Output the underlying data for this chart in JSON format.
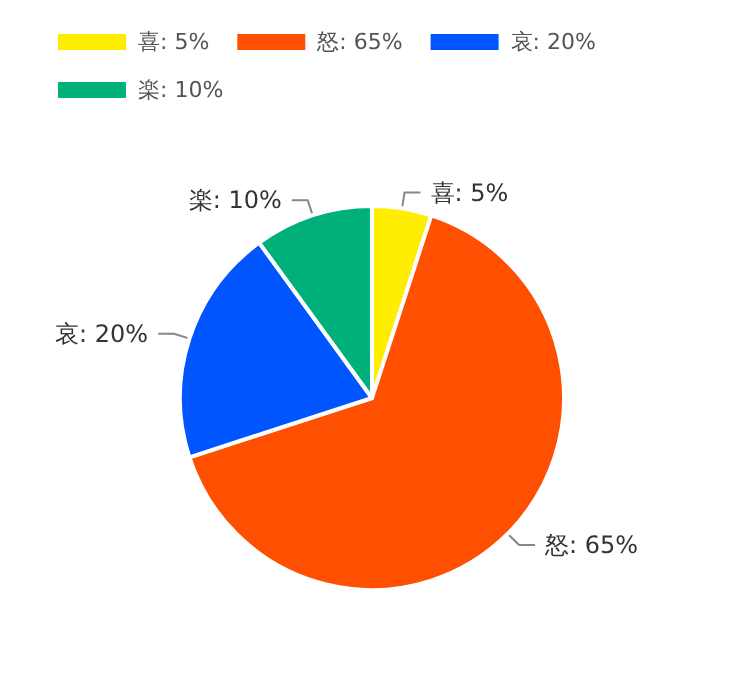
{
  "chart_data": {
    "type": "pie",
    "categories": [
      "喜: 5%",
      "怒: 65%",
      "哀: 20%",
      "楽: 10%"
    ],
    "values": [
      5,
      65,
      20,
      10
    ],
    "colors": [
      "#ffee00",
      "#ff4f00",
      "#0055ff",
      "#00b07a"
    ],
    "legend": "top left"
  }
}
